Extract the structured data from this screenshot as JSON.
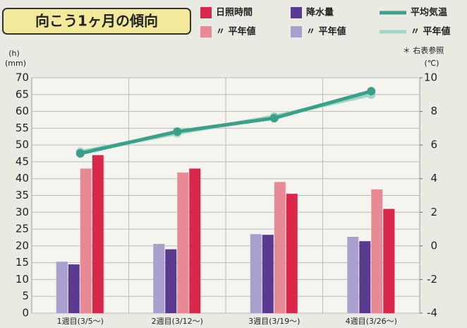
{
  "chart_data": {
    "type": "bar",
    "title": "向こう1ヶ月の傾向",
    "note": "＊ 右表参照",
    "y_unit_labels": [
      "(h)",
      "(mm)"
    ],
    "y2label": "(℃)",
    "categories": [
      "1週目(3/5〜)",
      "2週目(3/12〜)",
      "3週目(3/19〜)",
      "4週目(3/26〜)"
    ],
    "series": [
      {
        "name": "日照時間",
        "type": "bar",
        "color": "#d8284a",
        "values": [
          47,
          43,
          35.5,
          31
        ]
      },
      {
        "name": "〃 平年値",
        "type": "bar",
        "color": "#e88a95",
        "values": [
          43,
          41.8,
          39,
          36.8
        ]
      },
      {
        "name": "降水量",
        "type": "bar",
        "color": "#5a3a8e",
        "values": [
          14.5,
          19,
          23.3,
          21.4
        ]
      },
      {
        "name": "〃 平年値",
        "type": "bar",
        "color": "#a9a0cf",
        "values": [
          15.3,
          20.6,
          23.5,
          22.7
        ]
      },
      {
        "name": "平均気温",
        "type": "line",
        "axis": "y2",
        "color": "#3aa08a",
        "values": [
          5.5,
          6.8,
          7.6,
          9.2
        ]
      },
      {
        "name": "〃 平年値",
        "type": "line",
        "axis": "y2",
        "color": "#9fd6c4",
        "values": [
          5.6,
          6.7,
          7.7,
          9.0
        ]
      }
    ],
    "ylim": [
      0,
      70
    ],
    "yticks": [
      0,
      5,
      10,
      15,
      20,
      25,
      30,
      35,
      40,
      45,
      50,
      55,
      60,
      65,
      70
    ],
    "y2lim": [
      -4,
      10
    ],
    "y2ticks": [
      -4,
      -2,
      0,
      2,
      4,
      6,
      8,
      10
    ],
    "grid": true
  }
}
